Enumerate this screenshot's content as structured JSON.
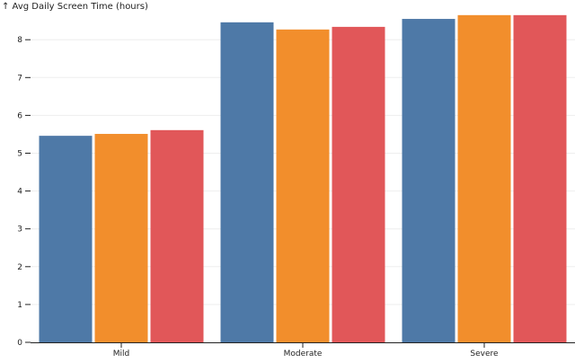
{
  "chart_data": {
    "type": "bar",
    "ylabel": "↑ Avg Daily Screen Time (hours)",
    "categories": [
      "Mild",
      "Moderate",
      "Severe"
    ],
    "series": [
      {
        "color": "#4e79a7",
        "values": [
          5.46,
          8.46,
          8.55
        ]
      },
      {
        "color": "#f28e2c",
        "values": [
          5.51,
          8.27,
          8.65
        ]
      },
      {
        "color": "#e15759",
        "values": [
          5.61,
          8.34,
          8.65
        ]
      }
    ],
    "yticks": [
      0,
      1,
      2,
      3,
      4,
      5,
      6,
      7,
      8
    ],
    "ylim": [
      0,
      8.9
    ],
    "grid": true
  }
}
